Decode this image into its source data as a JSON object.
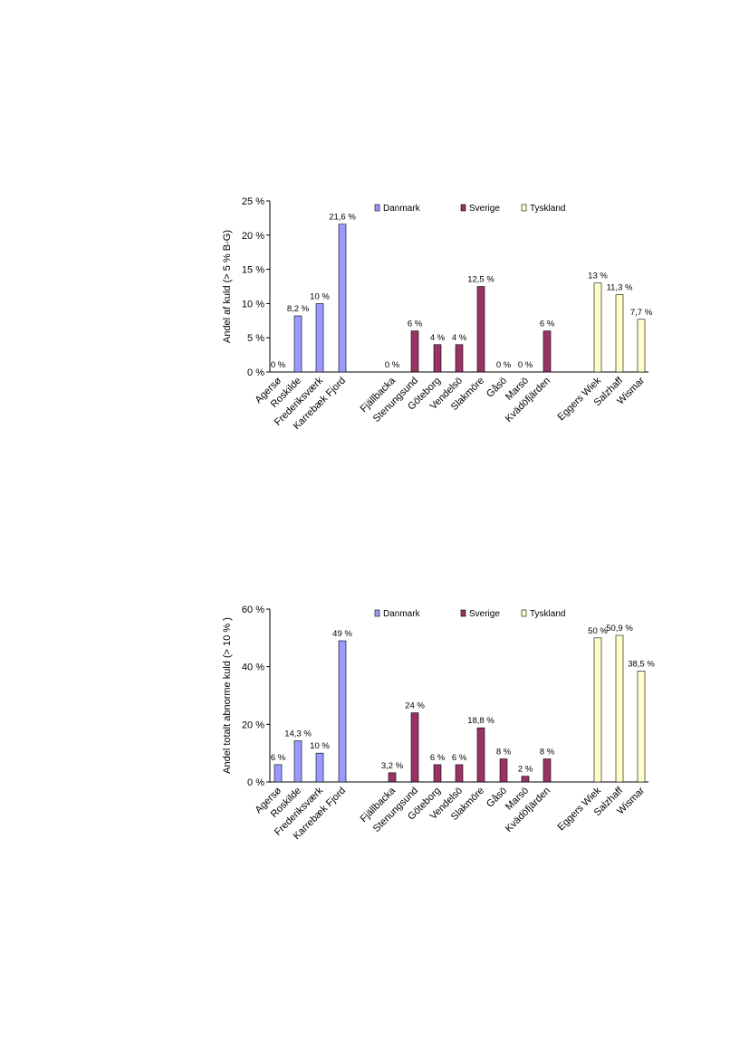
{
  "legend": [
    {
      "name": "Danmark",
      "color": "#9999ff"
    },
    {
      "name": "Sverige",
      "color": "#993366"
    },
    {
      "name": "Tyskland",
      "color": "#ffffcc"
    }
  ],
  "chart_data": [
    {
      "type": "bar",
      "ylabel": "Andel af kuld  (> 5 % B-G)",
      "ylim": [
        0,
        25
      ],
      "yticks": [
        "0 %",
        "5 %",
        "10 %",
        "15 %",
        "20 %",
        "25 %"
      ],
      "ytick_values": [
        0,
        5,
        10,
        15,
        20,
        25
      ],
      "legend_position": "top",
      "categories": [
        "Agersø",
        "Roskilde",
        "Frederiksværk",
        "Karrebæk Fjord",
        "Fjällbacka",
        "Stenungsund",
        "Göteborg",
        "Vendelsö",
        "Slakmöre",
        "Gåsö",
        "Marsö",
        "Kvädöfjärden",
        "Eggers Wiek",
        "Salzhaff",
        "Wismar"
      ],
      "groups": [
        "Danmark",
        "Danmark",
        "Danmark",
        "Danmark",
        "Sverige",
        "Sverige",
        "Sverige",
        "Sverige",
        "Sverige",
        "Sverige",
        "Sverige",
        "Sverige",
        "Tyskland",
        "Tyskland",
        "Tyskland"
      ],
      "values": [
        0,
        8.2,
        10,
        21.6,
        0,
        6,
        4,
        4,
        12.5,
        0,
        0,
        6,
        13,
        11.3,
        7.7
      ],
      "labels": [
        "0 %",
        "8,2 %",
        "10 %",
        "21,6 %",
        "0 %",
        "6 %",
        "4 %",
        "4 %",
        "12,5 %",
        "0 %",
        "0 %",
        "6 %",
        "13 %",
        "11,3 %",
        "7,7 %"
      ]
    },
    {
      "type": "bar",
      "ylabel": "Andel totalt abnorme kuld (> 10 % )",
      "ylim": [
        0,
        60
      ],
      "yticks": [
        "0 %",
        "20 %",
        "40 %",
        "60 %"
      ],
      "ytick_values": [
        0,
        20,
        40,
        60
      ],
      "legend_position": "top",
      "categories": [
        "Agersø",
        "Roskilde",
        "Frederiksværk",
        "Karrebæk Fjord",
        "Fjällbacka",
        "Stenungsund",
        "Göteborg",
        "Vendelsö",
        "Slakmöre",
        "Gåsö",
        "Marsö",
        "Kvädöfjärden",
        "Eggers Wiek",
        "Salzhaff",
        "Wismar"
      ],
      "groups": [
        "Danmark",
        "Danmark",
        "Danmark",
        "Danmark",
        "Sverige",
        "Sverige",
        "Sverige",
        "Sverige",
        "Sverige",
        "Sverige",
        "Sverige",
        "Sverige",
        "Tyskland",
        "Tyskland",
        "Tyskland"
      ],
      "values": [
        6,
        14.3,
        10,
        49,
        3.2,
        24,
        6,
        6,
        18.8,
        8,
        2,
        8,
        50,
        50.9,
        38.5
      ],
      "labels": [
        "6 %",
        "14,3 %",
        "10 %",
        "49 %",
        "3,2 %",
        "24 %",
        "6 %",
        "6 %",
        "18,8 %",
        "8 %",
        "2 %",
        "8 %",
        "50 %",
        "50,9 %",
        "38,5 %"
      ]
    }
  ]
}
